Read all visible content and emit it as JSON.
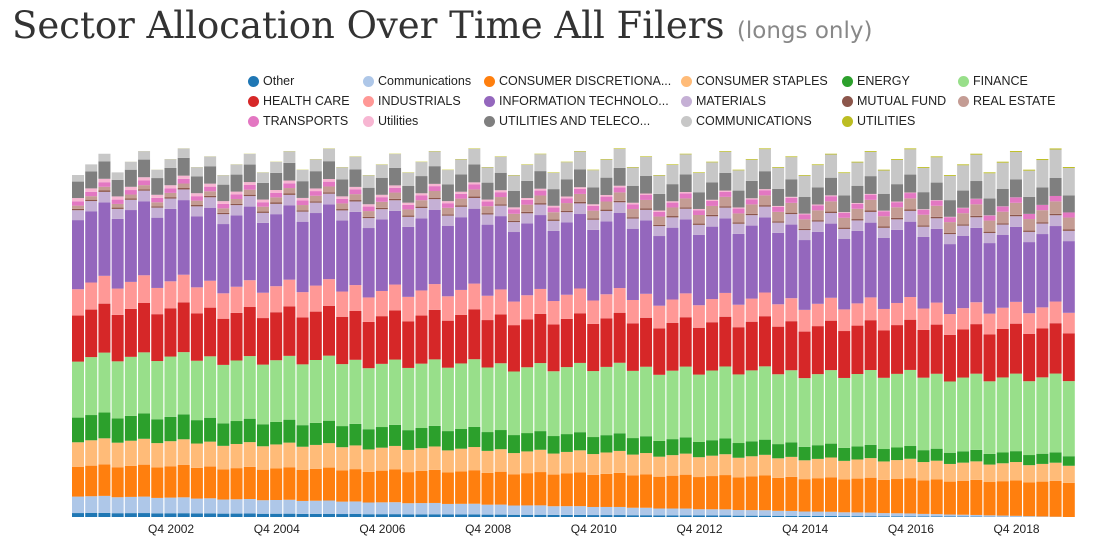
{
  "title": "Sector Allocation Over Time All Filers",
  "subtitle": "(longs only)",
  "chart_data": {
    "type": "bar",
    "stacked": true,
    "normalized": true,
    "title": "Sector Allocation Over Time All Filers",
    "subtitle": "(longs only)",
    "xlabel": "",
    "ylabel": "",
    "ylim": [
      0,
      1
    ],
    "grid": false,
    "legend_position": "top",
    "tick_labels": [
      "Q4 2002",
      "Q4 2004",
      "Q4 2006",
      "Q4 2008",
      "Q4 2010",
      "Q4 2012",
      "Q4 2014",
      "Q4 2016",
      "Q4 2018"
    ],
    "quarters_start": "Q1 2001",
    "quarters_end": "Q4 2019",
    "series": [
      {
        "name": "Other",
        "color": "#1f77b4",
        "value_start": 0.012,
        "value_end": 0.0
      },
      {
        "name": "Communications",
        "color": "#aec7e8",
        "value_start": 0.05,
        "value_end": 0.0
      },
      {
        "name": "CONSUMER DISCRETIONA...",
        "color": "#ff7f0e",
        "value_start": 0.09,
        "value_end": 0.1
      },
      {
        "name": "CONSUMER STAPLES",
        "color": "#ffbb78",
        "value_start": 0.075,
        "value_end": 0.05
      },
      {
        "name": "ENERGY",
        "color": "#2ca02c",
        "value_start": 0.075,
        "value_end": 0.028
      },
      {
        "name": "FINANCE",
        "color": "#98df8a",
        "value_start": 0.17,
        "value_end": 0.22
      },
      {
        "name": "HEALTH CARE",
        "color": "#d62728",
        "value_start": 0.14,
        "value_end": 0.14
      },
      {
        "name": "INDUSTRIALS",
        "color": "#ff9896",
        "value_start": 0.08,
        "value_end": 0.06
      },
      {
        "name": "INFORMATION TECHNOLO...",
        "color": "#9467bd",
        "value_start": 0.21,
        "value_end": 0.21
      },
      {
        "name": "MATERIALS",
        "color": "#c5b0d5",
        "value_start": 0.03,
        "value_end": 0.03
      },
      {
        "name": "MUTUAL FUND",
        "color": "#8c564b",
        "value_start": 0.004,
        "value_end": 0.004
      },
      {
        "name": "REAL ESTATE",
        "color": "#c49c94",
        "value_start": 0.01,
        "value_end": 0.035
      },
      {
        "name": "TRANSPORTS",
        "color": "#e377c2",
        "value_start": 0.013,
        "value_end": 0.015
      },
      {
        "name": "Utilities",
        "color": "#f7b6d2",
        "value_start": 0.01,
        "value_end": 0.0
      },
      {
        "name": "UTILITIES AND TELECO...",
        "color": "#7f7f7f",
        "value_start": 0.05,
        "value_end": 0.05
      },
      {
        "name": "COMMUNICATIONS",
        "color": "#c7c7c7",
        "value_start": 0.02,
        "value_end": 0.08
      },
      {
        "name": "UTILITIES",
        "color": "#bcbd22",
        "value_start": 0.0,
        "value_end": 0.003
      }
    ]
  },
  "legend_rows": [
    [
      0,
      1,
      2,
      3,
      4,
      5
    ],
    [
      6,
      7,
      8,
      9,
      10,
      11
    ],
    [
      12,
      13,
      14,
      15,
      16
    ]
  ]
}
